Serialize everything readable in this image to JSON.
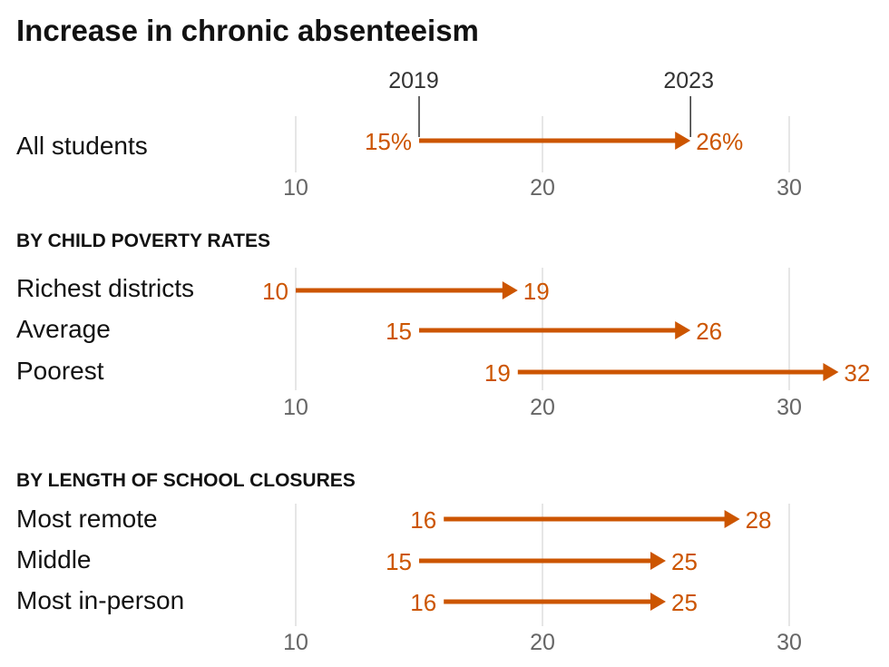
{
  "chart_data": {
    "type": "arrow-range",
    "title": "Increase in chronic absenteeism",
    "xlim": [
      10,
      30
    ],
    "ticks": [
      10,
      20,
      30
    ],
    "tick_labels": [
      "10",
      "20",
      "30"
    ],
    "start_label": "2019",
    "end_label": "2023",
    "accent_color": "#cc5500",
    "panels": [
      {
        "heading": "",
        "rows": [
          {
            "label": "All students",
            "start": 15,
            "end": 26,
            "start_text": "15%",
            "end_text": "26%"
          }
        ]
      },
      {
        "heading": "BY CHILD POVERTY RATES",
        "rows": [
          {
            "label": "Richest districts",
            "start": 10,
            "end": 19,
            "start_text": "10",
            "end_text": "19"
          },
          {
            "label": "Average",
            "start": 15,
            "end": 26,
            "start_text": "15",
            "end_text": "26"
          },
          {
            "label": "Poorest",
            "start": 19,
            "end": 32,
            "start_text": "19",
            "end_text": "32"
          }
        ]
      },
      {
        "heading": "BY LENGTH OF SCHOOL CLOSURES",
        "rows": [
          {
            "label": "Most remote",
            "start": 16,
            "end": 28,
            "start_text": "16",
            "end_text": "28"
          },
          {
            "label": "Middle",
            "start": 15,
            "end": 25,
            "start_text": "15",
            "end_text": "25"
          },
          {
            "label": "Most in-person",
            "start": 16,
            "end": 25,
            "start_text": "16",
            "end_text": "25"
          }
        ]
      }
    ]
  }
}
